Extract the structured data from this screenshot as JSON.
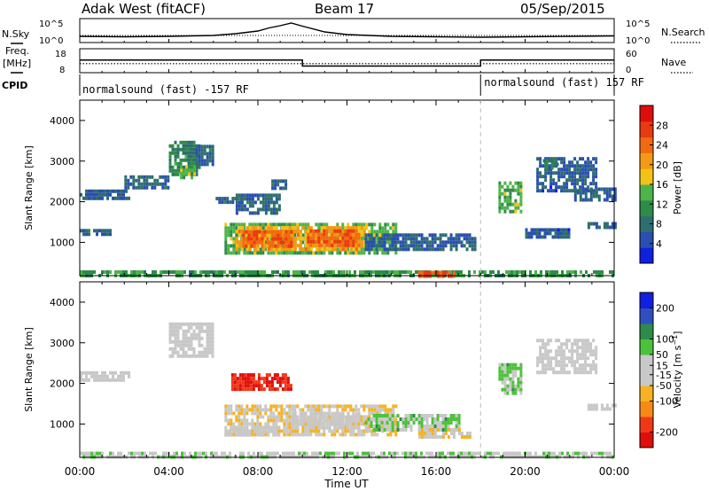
{
  "header": {
    "station": "Adak West (fitACF)",
    "beam": "Beam 17",
    "date": "05/Sep/2015"
  },
  "strip_labels": {
    "nsky": "N.Sky",
    "nsearch": "N.Search",
    "freq_line1": "Freq.",
    "freq_line2": "[MHz]",
    "nave": "Nave",
    "cpid": "CPID"
  },
  "cpid_segments": [
    {
      "label": "normalsound (fast) -157 RF",
      "start_hour": 0,
      "end_hour": 18
    },
    {
      "label": "normalsound (fast) 157 RF",
      "start_hour": 18,
      "end_hour": 24
    }
  ],
  "colors": {
    "power": [
      "#1020e0",
      "#2a4fb0",
      "#2f6e6e",
      "#2e8b4a",
      "#4db34a",
      "#f2c316",
      "#f39a14",
      "#f26a10",
      "#e83a10",
      "#e00d0d"
    ],
    "velocity": [
      "#e00d0d",
      "#f03818",
      "#f78a14",
      "#f5b222",
      "#c8c8c8",
      "#c8c8c8",
      "#4bc23a",
      "#2e8b4a",
      "#2f4fc0",
      "#1020e0"
    ]
  },
  "chart_data": [
    {
      "type": "line",
      "panel": "noise",
      "x": [
        0,
        2,
        4,
        6,
        7,
        8,
        8.5,
        9,
        9.5,
        10,
        11,
        12,
        14,
        16,
        18,
        20,
        22,
        24
      ],
      "series": [
        {
          "name": "N.Sky",
          "values": [
            1.2,
            1.1,
            1.2,
            1.4,
            1.8,
            2.4,
            3.1,
            3.6,
            4.2,
            3.5,
            2.2,
            1.6,
            1.2,
            1.1,
            1.0,
            1.1,
            1.2,
            1.3
          ]
        }
      ],
      "y_axis_left": {
        "ticks": [
          "10^5",
          "10^0"
        ]
      },
      "y_axis_right": {
        "ticks": [
          "10^5",
          "10^0"
        ]
      }
    },
    {
      "type": "line",
      "panel": "frequency",
      "series": [
        {
          "name": "Freq.",
          "segments": [
            [
              0,
              10,
              13.3
            ],
            [
              10,
              18,
              10.6
            ],
            [
              18,
              24,
              13.3
            ]
          ]
        },
        {
          "name": "Nave",
          "segments": [
            [
              0,
              24,
              22
            ]
          ]
        }
      ],
      "y_axis_left": {
        "ticks": [
          18,
          8
        ],
        "ylim": [
          8,
          18
        ]
      },
      "y_axis_right": {
        "ticks": [
          60,
          0
        ],
        "ylim": [
          0,
          60
        ]
      }
    },
    {
      "type": "heatmap",
      "panel": "power",
      "xlabel": "",
      "ylabel": "Slant Range [km]",
      "xlim": [
        0,
        24
      ],
      "ylim": [
        180,
        4500
      ],
      "yticks": [
        1000,
        2000,
        3000,
        4000
      ],
      "colorbar": {
        "label": "Power [dB]",
        "ticks": [
          4,
          8,
          12,
          16,
          20,
          24,
          28
        ],
        "range": [
          0,
          32
        ]
      },
      "regions": [
        {
          "t0": 0.0,
          "t1": 2.2,
          "r0": 2080,
          "r1": 2300,
          "value": 6
        },
        {
          "t0": 0.0,
          "t1": 1.4,
          "r0": 1170,
          "r1": 1330,
          "value": 7
        },
        {
          "t0": 2.0,
          "t1": 4.0,
          "r0": 2350,
          "r1": 2650,
          "value": 7
        },
        {
          "t0": 4.0,
          "t1": 5.4,
          "r0": 2700,
          "r1": 3500,
          "value": 10
        },
        {
          "t0": 4.5,
          "t1": 5.1,
          "r0": 2600,
          "r1": 2900,
          "value": 14
        },
        {
          "t0": 5.2,
          "t1": 6.0,
          "r0": 2950,
          "r1": 3400,
          "value": 7
        },
        {
          "t0": 6.1,
          "t1": 7.2,
          "r0": 1950,
          "r1": 2120,
          "value": 7
        },
        {
          "t0": 7.0,
          "t1": 9.0,
          "r0": 1750,
          "r1": 2200,
          "value": 7
        },
        {
          "t0": 8.6,
          "t1": 9.3,
          "r0": 2350,
          "r1": 2550,
          "value": 7
        },
        {
          "t0": 6.5,
          "t1": 14.2,
          "r0": 720,
          "r1": 1480,
          "value": 14
        },
        {
          "t0": 7.0,
          "t1": 12.8,
          "r0": 800,
          "r1": 1400,
          "value": 20
        },
        {
          "t0": 7.3,
          "t1": 9.5,
          "r0": 880,
          "r1": 1300,
          "value": 25
        },
        {
          "t0": 10.2,
          "t1": 12.5,
          "r0": 900,
          "r1": 1320,
          "value": 25
        },
        {
          "t0": 12.8,
          "t1": 17.8,
          "r0": 820,
          "r1": 1220,
          "value": 6
        },
        {
          "t0": 0.0,
          "t1": 24.0,
          "r0": 180,
          "r1": 310,
          "value": 12
        },
        {
          "t0": 15.2,
          "t1": 16.8,
          "r0": 180,
          "r1": 300,
          "value": 26
        },
        {
          "t0": 18.8,
          "t1": 19.8,
          "r0": 1750,
          "r1": 2500,
          "value": 14
        },
        {
          "t0": 20.5,
          "t1": 23.2,
          "r0": 2300,
          "r1": 3100,
          "value": 6
        },
        {
          "t0": 20.8,
          "t1": 21.5,
          "r0": 2850,
          "r1": 3050,
          "value": 9
        },
        {
          "t0": 22.8,
          "t1": 24.0,
          "r0": 1350,
          "r1": 1500,
          "value": 6
        },
        {
          "t0": 22.2,
          "t1": 24.0,
          "r0": 2050,
          "r1": 2350,
          "value": 6
        },
        {
          "t0": 20.0,
          "t1": 22.0,
          "r0": 1100,
          "r1": 1350,
          "value": 6
        }
      ]
    },
    {
      "type": "heatmap",
      "panel": "velocity",
      "xlabel": "Time UT",
      "ylabel": "Slant Range [km]",
      "xlim": [
        0,
        24
      ],
      "ylim": [
        180,
        4500
      ],
      "yticks": [
        1000,
        2000,
        3000,
        4000
      ],
      "xticks": [
        "00:00",
        "04:00",
        "08:00",
        "12:00",
        "16:00",
        "20:00",
        "00:00"
      ],
      "colorbar": {
        "label": "Velocity [m s^-1]",
        "ticks": [
          -200,
          -100,
          -50,
          -15,
          15,
          50,
          100,
          200
        ],
        "range": [
          -250,
          250
        ]
      },
      "regions": [
        {
          "t0": 0.0,
          "t1": 2.2,
          "r0": 2080,
          "r1": 2300,
          "value": 0
        },
        {
          "t0": 4.0,
          "t1": 6.0,
          "r0": 2700,
          "r1": 3500,
          "value": 0
        },
        {
          "t0": 6.8,
          "t1": 9.5,
          "r0": 1850,
          "r1": 2250,
          "value": -200
        },
        {
          "t0": 6.5,
          "t1": 14.2,
          "r0": 720,
          "r1": 1480,
          "value": -40
        },
        {
          "t0": 6.5,
          "t1": 9.0,
          "r0": 720,
          "r1": 950,
          "value": 0
        },
        {
          "t0": 9.5,
          "t1": 12.5,
          "r0": 900,
          "r1": 1300,
          "value": 0
        },
        {
          "t0": 12.8,
          "t1": 17.0,
          "r0": 900,
          "r1": 1250,
          "value": 60
        },
        {
          "t0": 15.2,
          "t1": 17.5,
          "r0": 700,
          "r1": 900,
          "value": -40
        },
        {
          "t0": 0.0,
          "t1": 24.0,
          "r0": 180,
          "r1": 320,
          "value": 25
        },
        {
          "t0": 18.8,
          "t1": 19.8,
          "r0": 1750,
          "r1": 2500,
          "value": 60
        },
        {
          "t0": 20.5,
          "t1": 23.2,
          "r0": 2300,
          "r1": 3100,
          "value": 0
        },
        {
          "t0": 22.8,
          "t1": 24.0,
          "r0": 1350,
          "r1": 1500,
          "value": 0
        }
      ]
    }
  ]
}
